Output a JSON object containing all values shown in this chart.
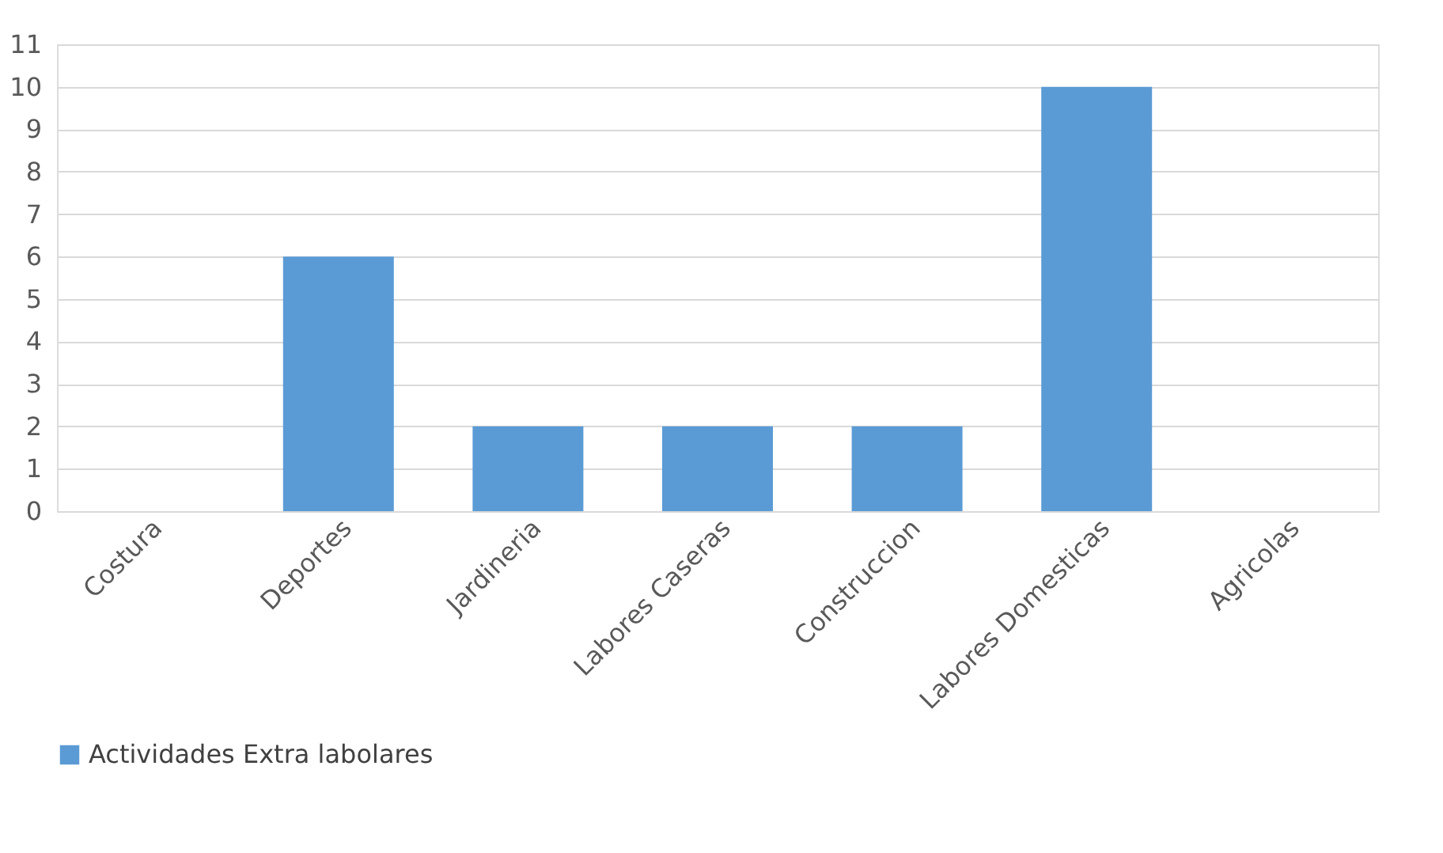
{
  "chart_data": {
    "type": "bar",
    "categories": [
      "Costura",
      "Deportes",
      "Jardineria",
      "Labores Caseras",
      "Construccion",
      "Labores Domesticas",
      "Agricolas"
    ],
    "series": [
      {
        "name": "Actividades Extra labolares",
        "color": "#5b9bd5",
        "values": [
          0,
          6,
          2,
          2,
          2,
          10,
          0
        ]
      }
    ],
    "ylim": [
      0,
      11
    ],
    "yticks": [
      0,
      1,
      2,
      3,
      4,
      5,
      6,
      7,
      8,
      9,
      10,
      11
    ],
    "grid": "y",
    "legend": "bottom"
  }
}
